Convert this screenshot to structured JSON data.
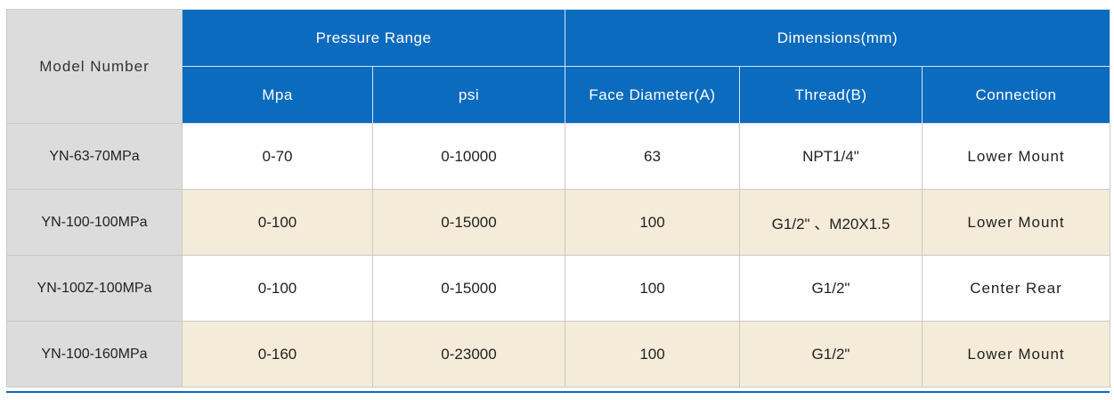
{
  "headers": {
    "model_number": "Model Number",
    "pressure_range": "Pressure Range",
    "dimensions": "Dimensions(mm)",
    "mpa": "Mpa",
    "psi": "psi",
    "face_diameter": "Face Diameter(A)",
    "thread": "Thread(B)",
    "connection": "Connection"
  },
  "rows": [
    {
      "model": "YN-63-70MPa",
      "mpa": "0-70",
      "psi": "0-10000",
      "face": "63",
      "thread": "NPT1/4\"",
      "connection": "Lower Mount"
    },
    {
      "model": "YN-100-100MPa",
      "mpa": "0-100",
      "psi": "0-15000",
      "face": "100",
      "thread": "G1/2\" 、M20X1.5",
      "connection": "Lower Mount"
    },
    {
      "model": "YN-100Z-100MPa",
      "mpa": "0-100",
      "psi": "0-15000",
      "face": "100",
      "thread": "G1/2\"",
      "connection": "Center Rear"
    },
    {
      "model": "YN-100-160MPa",
      "mpa": "0-160",
      "psi": "0-23000",
      "face": "100",
      "thread": "G1/2\"",
      "connection": "Lower Mount"
    }
  ],
  "colors": {
    "header_blue": "#0b6bbf",
    "model_gray": "#dcdcdc",
    "row_alt_beige": "#f4ecd9"
  }
}
